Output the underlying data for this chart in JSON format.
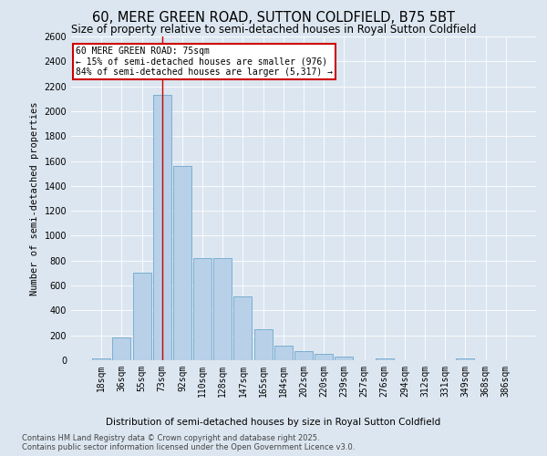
{
  "title": "60, MERE GREEN ROAD, SUTTON COLDFIELD, B75 5BT",
  "subtitle": "Size of property relative to semi-detached houses in Royal Sutton Coldfield",
  "xlabel_bottom": "Distribution of semi-detached houses by size in Royal Sutton Coldfield",
  "ylabel": "Number of semi-detached properties",
  "categories": [
    "18sqm",
    "36sqm",
    "55sqm",
    "73sqm",
    "92sqm",
    "110sqm",
    "128sqm",
    "147sqm",
    "165sqm",
    "184sqm",
    "202sqm",
    "220sqm",
    "239sqm",
    "257sqm",
    "276sqm",
    "294sqm",
    "312sqm",
    "331sqm",
    "349sqm",
    "368sqm",
    "386sqm"
  ],
  "values": [
    15,
    180,
    700,
    2130,
    1560,
    820,
    820,
    510,
    250,
    120,
    70,
    50,
    30,
    0,
    15,
    0,
    0,
    0,
    15,
    0,
    0
  ],
  "bar_color": "#b8d0e8",
  "bar_edge_color": "#6fa8cc",
  "highlight_index": 3,
  "annotation_box_text": "60 MERE GREEN ROAD: 75sqm\n← 15% of semi-detached houses are smaller (976)\n84% of semi-detached houses are larger (5,317) →",
  "annotation_box_color": "#ffffff",
  "annotation_box_edge_color": "#cc0000",
  "subject_line_color": "#cc0000",
  "background_color": "#dce6f0",
  "plot_background_color": "#dce6f0",
  "ylim": [
    0,
    2600
  ],
  "yticks": [
    0,
    200,
    400,
    600,
    800,
    1000,
    1200,
    1400,
    1600,
    1800,
    2000,
    2200,
    2400,
    2600
  ],
  "footer_text": "Contains HM Land Registry data © Crown copyright and database right 2025.\nContains public sector information licensed under the Open Government Licence v3.0.",
  "title_fontsize": 10.5,
  "subtitle_fontsize": 8.5,
  "axis_label_fontsize": 7.5,
  "tick_fontsize": 7,
  "annotation_fontsize": 7,
  "footer_fontsize": 6
}
